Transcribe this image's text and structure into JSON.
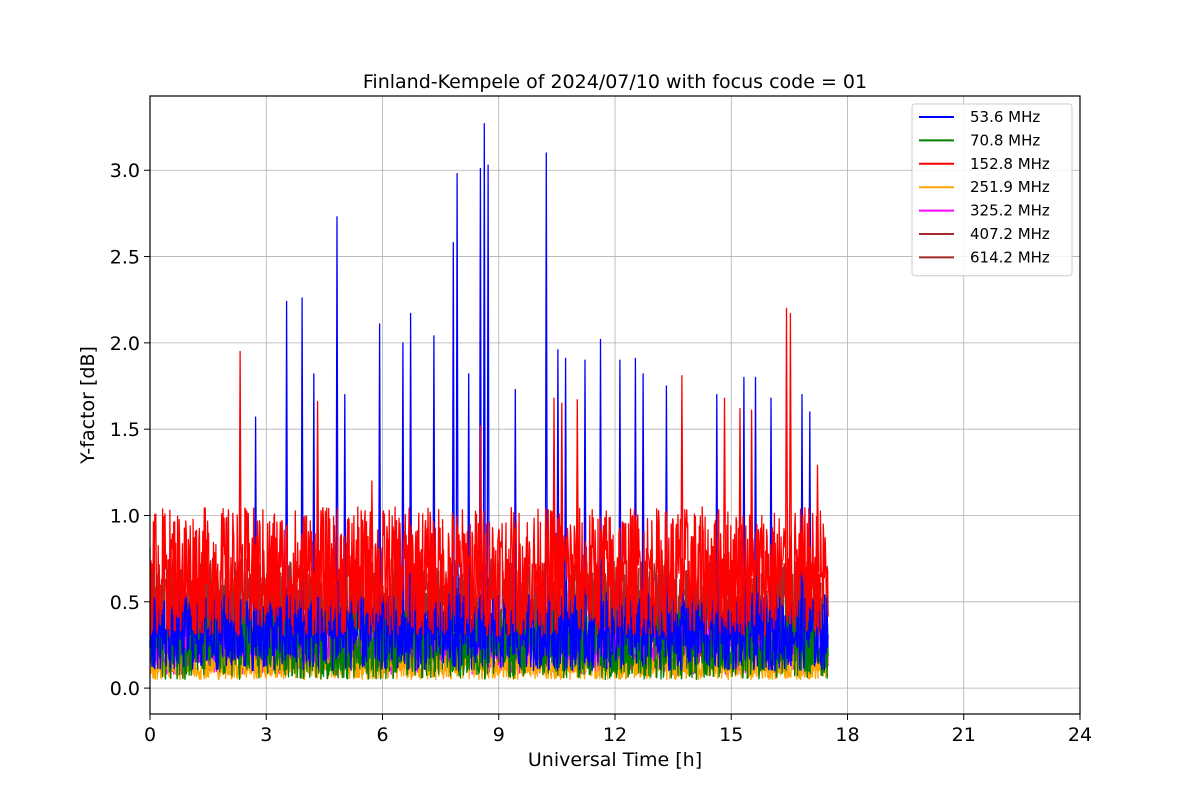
{
  "chart_data": {
    "type": "line",
    "title": "Finland-Kempele of 2024/07/10 with focus code = 01",
    "xlabel": "Universal Time [h]",
    "ylabel": "Y-factor [dB]",
    "xlim": [
      0,
      24
    ],
    "ylim": [
      -0.15,
      3.43
    ],
    "xticks": [
      0,
      3,
      6,
      9,
      12,
      15,
      18,
      21,
      24
    ],
    "yticks": [
      0.0,
      0.5,
      1.0,
      1.5,
      2.0,
      2.5,
      3.0
    ],
    "xtick_labels": [
      "0",
      "3",
      "6",
      "9",
      "12",
      "15",
      "18",
      "21",
      "24"
    ],
    "ytick_labels": [
      "0.0",
      "0.5",
      "1.0",
      "1.5",
      "2.0",
      "2.5",
      "3.0"
    ],
    "grid": true,
    "legend_position": "top-right",
    "data_end_hour": 17.5,
    "series": [
      {
        "name": "53.6 MHz",
        "label": "  53.6 MHz",
        "color": "#0000ff",
        "base_low": 0.1,
        "base_high": 0.55,
        "spikes": [
          [
            2.7,
            1.57
          ],
          [
            3.5,
            2.24
          ],
          [
            3.9,
            2.26
          ],
          [
            4.2,
            1.82
          ],
          [
            4.8,
            2.73
          ],
          [
            5.0,
            1.7
          ],
          [
            5.9,
            2.11
          ],
          [
            6.5,
            2.0
          ],
          [
            6.7,
            2.17
          ],
          [
            7.3,
            2.04
          ],
          [
            7.8,
            2.58
          ],
          [
            7.9,
            2.98
          ],
          [
            8.2,
            1.82
          ],
          [
            8.5,
            3.01
          ],
          [
            8.6,
            3.27
          ],
          [
            8.7,
            3.03
          ],
          [
            9.4,
            1.73
          ],
          [
            10.2,
            3.1
          ],
          [
            10.5,
            1.96
          ],
          [
            10.7,
            1.91
          ],
          [
            11.2,
            1.9
          ],
          [
            11.6,
            2.02
          ],
          [
            12.1,
            1.9
          ],
          [
            12.5,
            1.91
          ],
          [
            12.7,
            1.82
          ],
          [
            13.3,
            1.75
          ],
          [
            14.6,
            1.7
          ],
          [
            15.3,
            1.8
          ],
          [
            15.6,
            1.8
          ],
          [
            16.0,
            1.68
          ],
          [
            16.8,
            1.7
          ],
          [
            17.0,
            1.6
          ]
        ]
      },
      {
        "name": "70.8 MHz",
        "label": "  70.8 MHz",
        "color": "#008000",
        "base_low": 0.05,
        "base_high": 0.45,
        "spikes": [
          [
            12.7,
            0.55
          ],
          [
            14.8,
            0.52
          ],
          [
            16.4,
            0.56
          ]
        ]
      },
      {
        "name": "152.8 MHz",
        "label": "152.8 MHz",
        "color": "#ff0000",
        "base_low": 0.3,
        "base_high": 1.05,
        "spikes": [
          [
            2.3,
            1.95
          ],
          [
            4.3,
            1.66
          ],
          [
            5.7,
            1.2
          ],
          [
            8.5,
            1.52
          ],
          [
            10.4,
            1.68
          ],
          [
            10.6,
            1.65
          ],
          [
            11.0,
            1.67
          ],
          [
            13.7,
            1.81
          ],
          [
            14.8,
            1.68
          ],
          [
            15.2,
            1.62
          ],
          [
            15.5,
            1.61
          ],
          [
            16.4,
            2.2
          ],
          [
            16.5,
            2.17
          ],
          [
            17.2,
            1.29
          ]
        ]
      },
      {
        "name": "251.9 MHz",
        "label": "251.9 MHz",
        "color": "#ffa500",
        "base_low": 0.05,
        "base_high": 0.2,
        "spikes": []
      },
      {
        "name": "325.2 MHz",
        "label": "325.2 MHz",
        "color": "#ff00ff",
        "base_low": 0.08,
        "base_high": 0.35,
        "spikes": [
          [
            4.3,
            0.35
          ],
          [
            8.0,
            0.55
          ],
          [
            10.0,
            0.5
          ]
        ]
      },
      {
        "name": "407.2 MHz",
        "label": "407.2 MHz",
        "color": "#a52a2a",
        "base_low": 0.1,
        "base_high": 0.75,
        "spikes": []
      },
      {
        "name": "614.2 MHz",
        "label": "614.2 MHz",
        "color": "#a52a2a",
        "base_low": 0.1,
        "base_high": 0.7,
        "spikes": []
      }
    ]
  }
}
